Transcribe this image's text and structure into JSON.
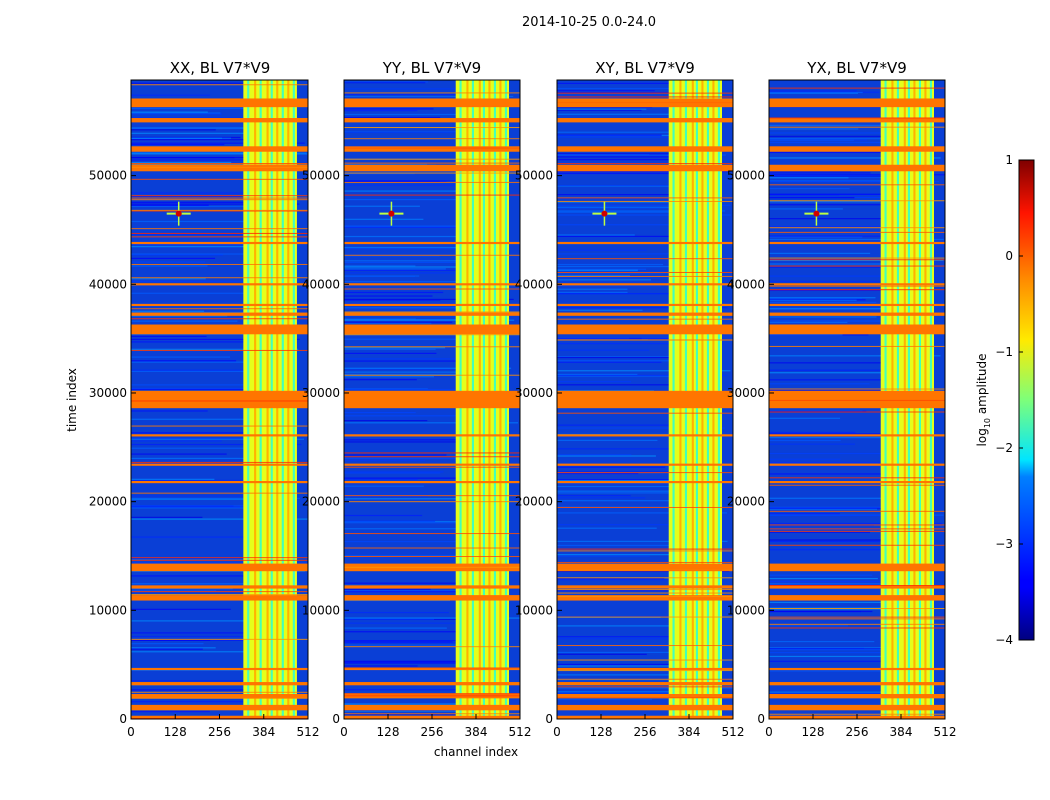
{
  "chart_data": {
    "type": "heatmap",
    "suptitle": "2014-10-25 0.0-24.0",
    "xlabel": "channel index",
    "ylabel": "time index",
    "xlim": [
      0,
      512
    ],
    "ylim": [
      0,
      58800
    ],
    "xticks": [
      0,
      128,
      256,
      384,
      512
    ],
    "yticks": [
      0,
      10000,
      20000,
      30000,
      40000,
      50000
    ],
    "colorbar": {
      "label_prefix": "log",
      "label_sub": "10",
      "label_suffix": " amplitude",
      "range": [
        -4,
        1
      ],
      "ticks": [
        "1",
        "0",
        "−1",
        "−2",
        "−3",
        "−4"
      ],
      "tick_values": [
        1,
        0,
        -1,
        -2,
        -3,
        -4
      ]
    },
    "panels": [
      {
        "title": "XX, BL V7*V9"
      },
      {
        "title": "YY, BL V7*V9"
      },
      {
        "title": "XY, BL V7*V9"
      },
      {
        "title": "YX, BL V7*V9"
      }
    ],
    "features": {
      "background_level": -3.3,
      "high_band_channels": [
        325,
        480
      ],
      "high_band_level": -1.0,
      "flagged_time_bands": [
        [
          28600,
          30200
        ],
        [
          35400,
          36300
        ],
        [
          13600,
          14300
        ],
        [
          56300,
          57100
        ],
        [
          10900,
          11400
        ],
        [
          12000,
          12300
        ],
        [
          52200,
          52700
        ],
        [
          54900,
          55300
        ],
        [
          50400,
          51000
        ],
        [
          0,
          300
        ],
        [
          800,
          1300
        ],
        [
          1900,
          2300
        ],
        [
          3100,
          3400
        ],
        [
          4500,
          4700
        ],
        [
          37100,
          37400
        ],
        [
          38000,
          38200
        ],
        [
          39900,
          40100
        ],
        [
          43700,
          43900
        ],
        [
          26000,
          26200
        ],
        [
          21700,
          21900
        ],
        [
          23300,
          23500
        ]
      ],
      "flagged_level": -0.2,
      "rfi_spike": {
        "channel": 138,
        "time": 46500,
        "level": 0.6
      }
    }
  }
}
